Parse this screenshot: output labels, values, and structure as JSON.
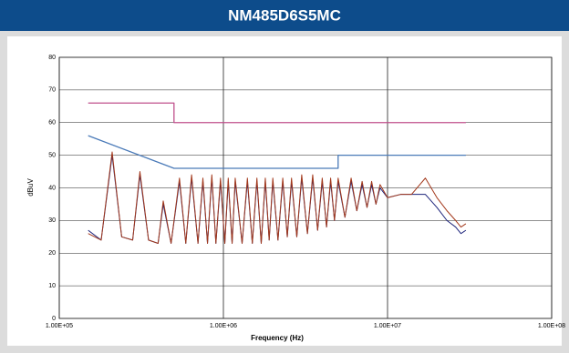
{
  "chart_data": {
    "type": "line",
    "title": "NM485D6S5MC",
    "x_label": "Frequency (Hz)",
    "y_label": "dBuV",
    "xscale": "log",
    "grid": true,
    "xlim": [
      100000,
      100000000
    ],
    "xticks": [
      {
        "value": 100000,
        "label": "1.00E+05"
      },
      {
        "value": 1000000,
        "label": "1.00E+06"
      },
      {
        "value": 10000000,
        "label": "1.00E+07"
      },
      {
        "value": 100000000,
        "label": "1.00E+08"
      }
    ],
    "ylim": [
      0,
      80
    ],
    "yticks": [
      0,
      10,
      20,
      30,
      40,
      50,
      60,
      70,
      80
    ],
    "series": [
      {
        "color": "#c0508c",
        "x": [
          150000,
          500000,
          500000,
          30000000
        ],
        "values": [
          66,
          66,
          60,
          60
        ]
      },
      {
        "color": "#4a7ab8",
        "x": [
          150000,
          500000,
          5000000,
          5000000,
          30000000
        ],
        "values": [
          56,
          46,
          46,
          50,
          50
        ]
      },
      {
        "color": "#1c237a",
        "x": [
          150000,
          180000,
          210000,
          240000,
          280000,
          310000,
          350000,
          400000,
          430000,
          480000,
          540000,
          590000,
          640000,
          700000,
          750000,
          800000,
          850000,
          900000,
          960000,
          1020000,
          1070000,
          1130000,
          1180000,
          1300000,
          1400000,
          1500000,
          1600000,
          1700000,
          1800000,
          1900000,
          2000000,
          2150000,
          2300000,
          2450000,
          2600000,
          2800000,
          3000000,
          3250000,
          3500000,
          3750000,
          4000000,
          4250000,
          4500000,
          4750000,
          5000000,
          5500000,
          6000000,
          6500000,
          7000000,
          7500000,
          8000000,
          8500000,
          9000000,
          10000000,
          12000000,
          14000000,
          17000000,
          20000000,
          23000000,
          26000000,
          28000000,
          30000000
        ],
        "values": [
          27,
          24,
          50,
          25,
          24,
          44,
          24,
          23,
          35,
          23,
          42,
          23,
          43,
          23,
          42,
          23,
          43,
          23,
          42,
          23,
          42,
          23,
          42,
          23,
          42,
          23,
          42,
          23,
          42,
          24,
          42,
          24,
          42,
          25,
          42,
          25,
          43,
          26,
          43,
          27,
          42,
          28,
          42,
          30,
          42,
          31,
          42,
          33,
          41,
          34,
          41,
          35,
          40,
          37,
          38,
          38,
          38,
          34,
          30,
          28,
          26,
          27
        ]
      },
      {
        "color": "#a3391c",
        "x": [
          150000,
          180000,
          210000,
          240000,
          280000,
          310000,
          350000,
          400000,
          430000,
          480000,
          540000,
          590000,
          640000,
          700000,
          750000,
          800000,
          850000,
          900000,
          960000,
          1020000,
          1070000,
          1130000,
          1180000,
          1300000,
          1400000,
          1500000,
          1600000,
          1700000,
          1800000,
          1900000,
          2000000,
          2150000,
          2300000,
          2450000,
          2600000,
          2800000,
          3000000,
          3250000,
          3500000,
          3750000,
          4000000,
          4250000,
          4500000,
          4750000,
          5000000,
          5500000,
          6000000,
          6500000,
          7000000,
          7500000,
          8000000,
          8500000,
          9000000,
          10000000,
          12000000,
          14000000,
          17000000,
          20000000,
          23000000,
          26000000,
          28000000,
          30000000
        ],
        "values": [
          26,
          24,
          51,
          25,
          24,
          45,
          24,
          23,
          36,
          23,
          43,
          23,
          44,
          23,
          43,
          23,
          44,
          23,
          43,
          23,
          43,
          23,
          43,
          23,
          43,
          23,
          43,
          23,
          43,
          24,
          43,
          24,
          43,
          25,
          43,
          25,
          44,
          26,
          44,
          27,
          43,
          28,
          43,
          30,
          43,
          31,
          43,
          33,
          42,
          34,
          42,
          35,
          41,
          37,
          38,
          38,
          43,
          37,
          33,
          30,
          28,
          29
        ]
      }
    ]
  }
}
